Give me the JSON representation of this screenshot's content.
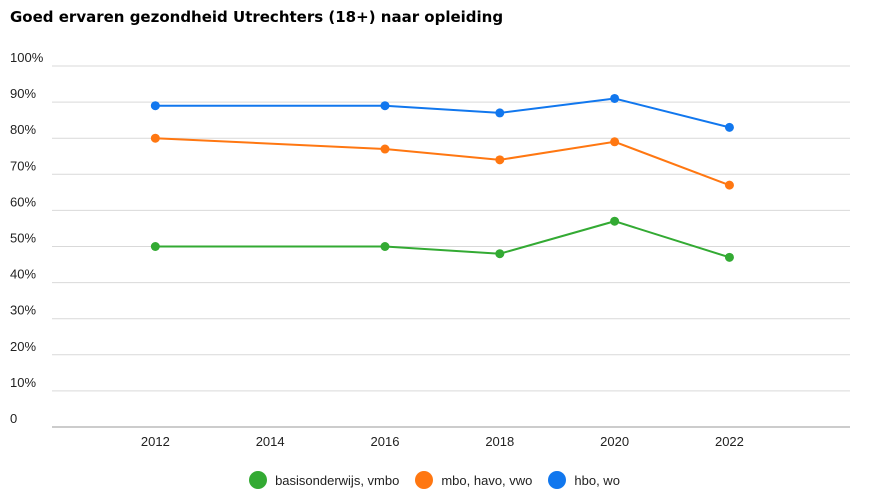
{
  "chart_data": {
    "type": "line",
    "title": "Goed ervaren gezondheid Utrechters (18+) naar opleiding",
    "xlabel": "",
    "ylabel": "",
    "x_ticks": [
      "2012",
      "2014",
      "2016",
      "2018",
      "2020",
      "2022"
    ],
    "y_ticks": [
      "0",
      "10%",
      "20%",
      "30%",
      "40%",
      "50%",
      "60%",
      "70%",
      "80%",
      "90%",
      "100%"
    ],
    "xlim": [
      2010.2,
      2024.1
    ],
    "ylim": [
      0,
      100
    ],
    "grid": true,
    "legend_position": "bottom",
    "x": [
      2012,
      2016,
      2018,
      2020,
      2022
    ],
    "series": [
      {
        "name": "basisonderwijs, vmbo",
        "color": "#33aa33",
        "values": [
          50,
          50,
          48,
          57,
          47
        ]
      },
      {
        "name": "mbo, havo, vwo",
        "color": "#ff7711",
        "values": [
          80,
          77,
          74,
          79,
          67
        ]
      },
      {
        "name": "hbo, wo",
        "color": "#1177ee",
        "values": [
          89,
          89,
          87,
          91,
          83
        ]
      }
    ]
  }
}
